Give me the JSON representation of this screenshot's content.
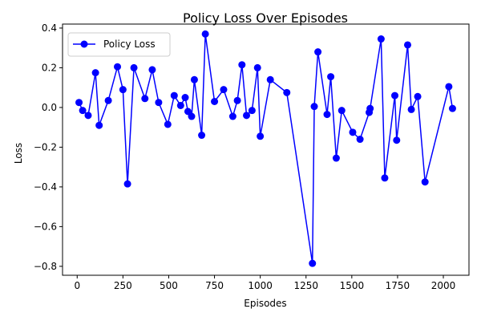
{
  "chart_data": {
    "type": "line",
    "title": "Policy Loss Over Episodes",
    "xlabel": "Episodes",
    "ylabel": "Loss",
    "xlim": [
      -80,
      2140
    ],
    "ylim": [
      -0.845,
      0.42
    ],
    "xticks": [
      0,
      250,
      500,
      750,
      1000,
      1250,
      1500,
      1750,
      2000
    ],
    "yticks": [
      -0.8,
      -0.6,
      -0.4,
      -0.2,
      0.0,
      0.2,
      0.4
    ],
    "xtick_labels": [
      "0",
      "250",
      "500",
      "750",
      "1000",
      "1250",
      "1500",
      "1750",
      "2000"
    ],
    "ytick_labels": [
      "−0.8",
      "−0.6",
      "−0.4",
      "−0.2",
      "0.0",
      "0.2",
      "0.4"
    ],
    "grid": false,
    "legend_position": "top-left",
    "series": [
      {
        "name": "Policy Loss",
        "color": "#0000ff",
        "marker": "circle",
        "points": [
          {
            "x": 10,
            "y": 0.025
          },
          {
            "x": 30,
            "y": -0.015
          },
          {
            "x": 60,
            "y": -0.04
          },
          {
            "x": 100,
            "y": 0.175
          },
          {
            "x": 120,
            "y": -0.09
          },
          {
            "x": 170,
            "y": 0.035
          },
          {
            "x": 220,
            "y": 0.205
          },
          {
            "x": 250,
            "y": 0.09
          },
          {
            "x": 275,
            "y": -0.385
          },
          {
            "x": 310,
            "y": 0.2
          },
          {
            "x": 370,
            "y": 0.045
          },
          {
            "x": 410,
            "y": 0.19
          },
          {
            "x": 445,
            "y": 0.025
          },
          {
            "x": 495,
            "y": -0.085
          },
          {
            "x": 530,
            "y": 0.06
          },
          {
            "x": 565,
            "y": 0.01
          },
          {
            "x": 590,
            "y": 0.05
          },
          {
            "x": 605,
            "y": -0.02
          },
          {
            "x": 625,
            "y": -0.045
          },
          {
            "x": 640,
            "y": 0.14
          },
          {
            "x": 680,
            "y": -0.14
          },
          {
            "x": 700,
            "y": 0.37
          },
          {
            "x": 750,
            "y": 0.03
          },
          {
            "x": 800,
            "y": 0.09
          },
          {
            "x": 850,
            "y": -0.045
          },
          {
            "x": 875,
            "y": 0.035
          },
          {
            "x": 900,
            "y": 0.215
          },
          {
            "x": 925,
            "y": -0.04
          },
          {
            "x": 955,
            "y": -0.015
          },
          {
            "x": 985,
            "y": 0.2
          },
          {
            "x": 1000,
            "y": -0.145
          },
          {
            "x": 1055,
            "y": 0.14
          },
          {
            "x": 1145,
            "y": 0.075
          },
          {
            "x": 1285,
            "y": -0.785
          },
          {
            "x": 1295,
            "y": 0.005
          },
          {
            "x": 1315,
            "y": 0.28
          },
          {
            "x": 1365,
            "y": -0.035
          },
          {
            "x": 1385,
            "y": 0.155
          },
          {
            "x": 1415,
            "y": -0.255
          },
          {
            "x": 1445,
            "y": -0.015
          },
          {
            "x": 1505,
            "y": -0.125
          },
          {
            "x": 1545,
            "y": -0.16
          },
          {
            "x": 1595,
            "y": -0.025
          },
          {
            "x": 1600,
            "y": -0.005
          },
          {
            "x": 1660,
            "y": 0.345
          },
          {
            "x": 1680,
            "y": -0.355
          },
          {
            "x": 1735,
            "y": 0.06
          },
          {
            "x": 1745,
            "y": -0.165
          },
          {
            "x": 1805,
            "y": 0.315
          },
          {
            "x": 1825,
            "y": -0.01
          },
          {
            "x": 1860,
            "y": 0.055
          },
          {
            "x": 1900,
            "y": -0.375
          },
          {
            "x": 2030,
            "y": 0.105
          },
          {
            "x": 2050,
            "y": -0.005
          }
        ]
      }
    ]
  }
}
